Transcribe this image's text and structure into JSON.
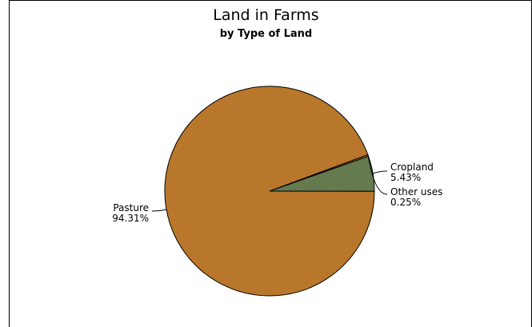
{
  "chart_data": {
    "type": "pie",
    "title": "Land in Farms",
    "subtitle": "by Type of Land",
    "slices": [
      {
        "label": "Cropland",
        "value_label": "5.43%",
        "value": 5.43,
        "color": "#657a4f"
      },
      {
        "label": "Other uses",
        "value_label": "0.25%",
        "value": 0.25,
        "color": "#b87a2e"
      },
      {
        "label": "Pasture",
        "value_label": "94.31%",
        "value": 94.31,
        "color": "#b8772b"
      }
    ]
  }
}
